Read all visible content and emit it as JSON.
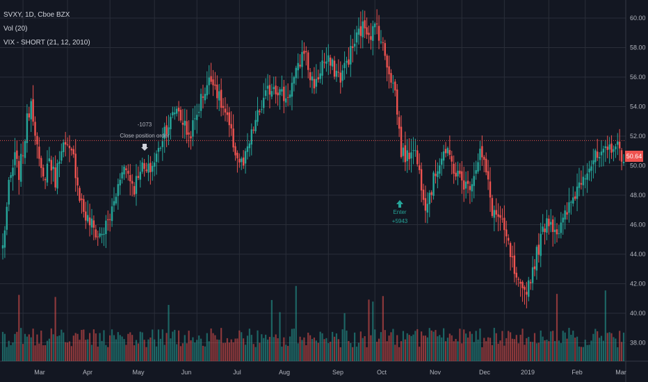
{
  "legend": {
    "symbol": "SVXY, 1D, Cboe BZX",
    "volume": "Vol (20)",
    "strategy": "VIX - SHORT (21, 12, 2010)"
  },
  "last_price": "50.64",
  "colors": {
    "background": "#131722",
    "grid": "#2a2e39",
    "up": "#26a69a",
    "down": "#ef5350",
    "text": "#b2b5be"
  },
  "chart_data": {
    "type": "candlestick",
    "x_axis_labels": [
      "Mar",
      "Apr",
      "May",
      "Jun",
      "Jul",
      "Aug",
      "Sep",
      "Oct",
      "Nov",
      "Dec",
      "2019",
      "Feb",
      "Mar"
    ],
    "y_axis_labels": [
      "60.00",
      "58.00",
      "56.00",
      "54.00",
      "52.00",
      "50.00",
      "48.00",
      "46.00",
      "44.00",
      "42.00",
      "40.00",
      "38.00"
    ],
    "ylim": [
      37.3,
      60.3
    ],
    "price_line": 51.7,
    "annotations": [
      {
        "text": "-1073"
      },
      {
        "text": "Close position order"
      },
      {
        "text": "Enter"
      },
      {
        "text": "+5943"
      }
    ],
    "anchors": [
      [
        0,
        44.5
      ],
      [
        3,
        48.5
      ],
      [
        6,
        50.5
      ],
      [
        8,
        49.5
      ],
      [
        10,
        51.0
      ],
      [
        12,
        53.0
      ],
      [
        14,
        54.5
      ],
      [
        16,
        52.5
      ],
      [
        18,
        50.0
      ],
      [
        20,
        49.0
      ],
      [
        23,
        50.5
      ],
      [
        26,
        49.0
      ],
      [
        29,
        51.5
      ],
      [
        32,
        51.0
      ],
      [
        35,
        50.5
      ],
      [
        38,
        48.0
      ],
      [
        41,
        46.5
      ],
      [
        44,
        46.0
      ],
      [
        47,
        45.2
      ],
      [
        50,
        45.6
      ],
      [
        53,
        46.5
      ],
      [
        56,
        48.0
      ],
      [
        59,
        50.0
      ],
      [
        62,
        49.5
      ],
      [
        65,
        48.5
      ],
      [
        68,
        50.0
      ],
      [
        71,
        49.5
      ],
      [
        74,
        50.0
      ],
      [
        77,
        51.0
      ],
      [
        80,
        52.5
      ],
      [
        83,
        53.0
      ],
      [
        86,
        54.0
      ],
      [
        89,
        53.0
      ],
      [
        92,
        52.0
      ],
      [
        95,
        53.0
      ],
      [
        98,
        54.5
      ],
      [
        101,
        55.5
      ],
      [
        104,
        56.0
      ],
      [
        107,
        54.5
      ],
      [
        110,
        53.5
      ],
      [
        113,
        52.0
      ],
      [
        116,
        50.5
      ],
      [
        119,
        50.0
      ],
      [
        122,
        51.5
      ],
      [
        125,
        53.0
      ],
      [
        128,
        54.0
      ],
      [
        131,
        55.0
      ],
      [
        134,
        55.5
      ],
      [
        137,
        55.0
      ],
      [
        140,
        54.5
      ],
      [
        143,
        55.5
      ],
      [
        146,
        56.5
      ],
      [
        149,
        58.0
      ],
      [
        152,
        56.0
      ],
      [
        155,
        55.5
      ],
      [
        158,
        57.0
      ],
      [
        161,
        57.0
      ],
      [
        164,
        56.5
      ],
      [
        167,
        56.0
      ],
      [
        170,
        57.0
      ],
      [
        173,
        58.0
      ],
      [
        176,
        59.0
      ],
      [
        179,
        59.5
      ],
      [
        182,
        59.0
      ],
      [
        185,
        59.5
      ],
      [
        188,
        58.0
      ],
      [
        191,
        56.5
      ],
      [
        194,
        55.0
      ],
      [
        197,
        51.0
      ],
      [
        200,
        50.5
      ],
      [
        203,
        51.5
      ],
      [
        206,
        49.5
      ],
      [
        209,
        47.5
      ],
      [
        212,
        48.5
      ],
      [
        215,
        50.0
      ],
      [
        218,
        51.0
      ],
      [
        221,
        50.5
      ],
      [
        224,
        49.5
      ],
      [
        227,
        49.0
      ],
      [
        230,
        48.5
      ],
      [
        233,
        49.5
      ],
      [
        236,
        51.0
      ],
      [
        239,
        49.5
      ],
      [
        242,
        47.0
      ],
      [
        245,
        46.5
      ],
      [
        248,
        45.5
      ],
      [
        251,
        44.0
      ],
      [
        254,
        42.0
      ],
      [
        257,
        41.3
      ],
      [
        260,
        42.0
      ],
      [
        263,
        43.5
      ],
      [
        266,
        45.0
      ],
      [
        269,
        46.5
      ],
      [
        272,
        46.0
      ],
      [
        275,
        45.5
      ],
      [
        278,
        46.5
      ],
      [
        281,
        47.5
      ],
      [
        284,
        48.5
      ],
      [
        287,
        49.5
      ],
      [
        290,
        50.0
      ],
      [
        293,
        50.5
      ],
      [
        296,
        50.5
      ],
      [
        299,
        51.0
      ],
      [
        302,
        51.5
      ],
      [
        305,
        51.0
      ],
      [
        307,
        50.6
      ]
    ]
  }
}
